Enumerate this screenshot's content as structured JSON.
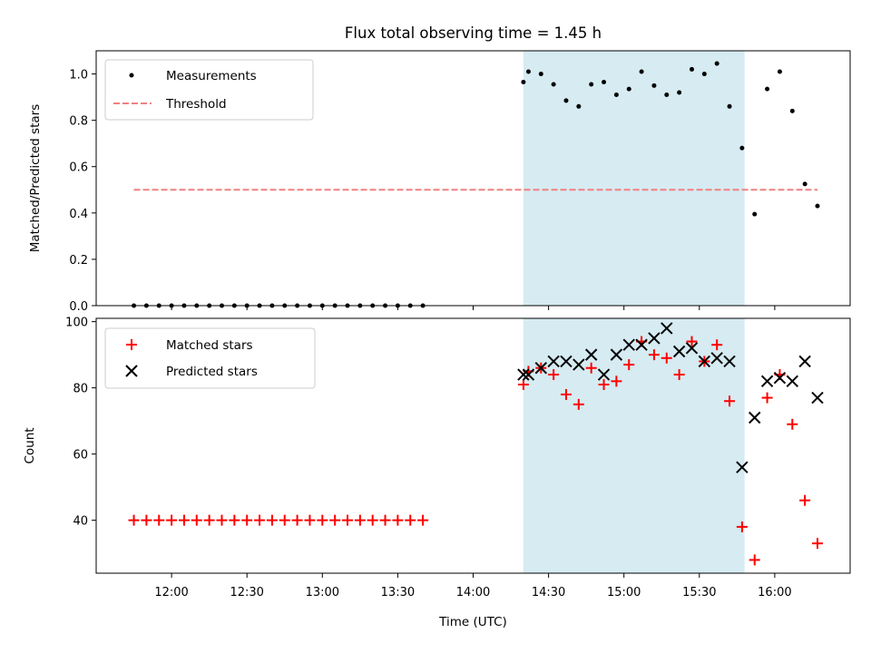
{
  "chart_data": {
    "type": "scatter",
    "title": "Flux total observing time = 1.45 h",
    "xlabel": "Time (UTC)",
    "x_ticks": [
      "12:00",
      "12:30",
      "13:00",
      "13:30",
      "14:00",
      "14:30",
      "15:00",
      "15:30",
      "16:00"
    ],
    "x_range": [
      "11:30",
      "16:30"
    ],
    "shaded_interval": [
      "14:20",
      "15:48"
    ],
    "top": {
      "ylabel": "Matched/Predicted stars",
      "ylim": [
        0,
        1.1
      ],
      "y_ticks": [
        "0.0",
        "0.2",
        "0.4",
        "0.6",
        "0.8",
        "1.0"
      ],
      "legend": [
        "Measurements",
        "Threshold"
      ],
      "legend_placement": "top-left",
      "threshold": {
        "name": "Threshold",
        "x": [
          "11:45",
          "16:17"
        ],
        "value": 0.5,
        "color": "#f08080"
      },
      "measurements": {
        "name": "Measurements",
        "x": [
          "11:45",
          "11:50",
          "11:55",
          "12:00",
          "12:05",
          "12:10",
          "12:15",
          "12:20",
          "12:25",
          "12:30",
          "12:35",
          "12:40",
          "12:45",
          "12:50",
          "12:55",
          "13:00",
          "13:05",
          "13:10",
          "13:15",
          "13:20",
          "13:25",
          "13:30",
          "13:35",
          "13:40",
          "14:20",
          "14:22",
          "14:27",
          "14:32",
          "14:37",
          "14:42",
          "14:47",
          "14:52",
          "14:57",
          "15:02",
          "15:07",
          "15:12",
          "15:17",
          "15:22",
          "15:27",
          "15:32",
          "15:37",
          "15:42",
          "15:47",
          "15:52",
          "15:57",
          "16:02",
          "16:07",
          "16:12",
          "16:17"
        ],
        "y": [
          0,
          0,
          0,
          0,
          0,
          0,
          0,
          0,
          0,
          0,
          0,
          0,
          0,
          0,
          0,
          0,
          0,
          0,
          0,
          0,
          0,
          0,
          0,
          0,
          0.965,
          1.01,
          1.0,
          0.955,
          0.885,
          0.86,
          0.955,
          0.965,
          0.91,
          0.935,
          1.01,
          0.95,
          0.91,
          0.92,
          1.02,
          1.0,
          1.045,
          0.86,
          0.68,
          0.395,
          0.935,
          1.01,
          0.84,
          0.525,
          0.43
        ]
      }
    },
    "bottom": {
      "ylabel": "Count",
      "ylim": [
        24,
        101
      ],
      "y_ticks": [
        "40",
        "60",
        "80",
        "100"
      ],
      "legend": [
        "Matched stars",
        "Predicted stars"
      ],
      "legend_placement": "top-left",
      "matched": {
        "name": "Matched stars",
        "color": "#ff0000",
        "x": [
          "11:45",
          "11:50",
          "11:55",
          "12:00",
          "12:05",
          "12:10",
          "12:15",
          "12:20",
          "12:25",
          "12:30",
          "12:35",
          "12:40",
          "12:45",
          "12:50",
          "12:55",
          "13:00",
          "13:05",
          "13:10",
          "13:15",
          "13:20",
          "13:25",
          "13:30",
          "13:35",
          "13:40",
          "14:20",
          "14:22",
          "14:27",
          "14:32",
          "14:37",
          "14:42",
          "14:47",
          "14:52",
          "14:57",
          "15:02",
          "15:07",
          "15:12",
          "15:17",
          "15:22",
          "15:27",
          "15:32",
          "15:37",
          "15:42",
          "15:47",
          "15:52",
          "15:57",
          "16:02",
          "16:07",
          "16:12",
          "16:17"
        ],
        "y": [
          40,
          40,
          40,
          40,
          40,
          40,
          40,
          40,
          40,
          40,
          40,
          40,
          40,
          40,
          40,
          40,
          40,
          40,
          40,
          40,
          40,
          40,
          40,
          40,
          81,
          85,
          86,
          84,
          78,
          75,
          86,
          81,
          82,
          87,
          94,
          90,
          89,
          84,
          94,
          88,
          93,
          76,
          38,
          28,
          77,
          84,
          69,
          46,
          33
        ]
      },
      "predicted": {
        "name": "Predicted stars",
        "color": "#000000",
        "x": [
          "14:20",
          "14:22",
          "14:27",
          "14:32",
          "14:37",
          "14:42",
          "14:47",
          "14:52",
          "14:57",
          "15:02",
          "15:07",
          "15:12",
          "15:17",
          "15:22",
          "15:27",
          "15:32",
          "15:37",
          "15:42",
          "15:47",
          "15:52",
          "15:57",
          "16:02",
          "16:07",
          "16:12",
          "16:17"
        ],
        "y": [
          84,
          84,
          86,
          88,
          88,
          87,
          90,
          84,
          90,
          93,
          93,
          95,
          98,
          91,
          92,
          88,
          89,
          88,
          56,
          71,
          82,
          83,
          82,
          88,
          77
        ]
      }
    }
  }
}
